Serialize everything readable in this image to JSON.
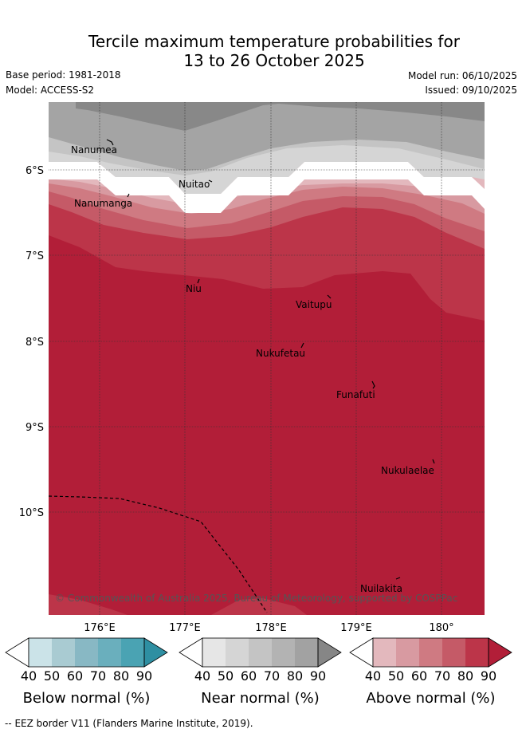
{
  "title": {
    "line1": "Tercile maximum temperature probabilities for",
    "line2": "13 to 26 October 2025"
  },
  "meta": {
    "base_period": "Base period: 1981-2018",
    "model": "Model: ACCESS-S2",
    "model_run": "Model run: 06/10/2025",
    "issued": "Issued: 09/10/2025"
  },
  "axes": {
    "lat_labels": [
      "6°S",
      "7°S",
      "8°S",
      "9°S",
      "10°S"
    ],
    "lon_labels": [
      "176°E",
      "177°E",
      "178°E",
      "179°E",
      "180°"
    ]
  },
  "places": [
    "Nanumea",
    "Nuitao",
    "Nanumanga",
    "Niu",
    "Vaitupu",
    "Nukufetau",
    "Funafuti",
    "Nukulaelae",
    "Nuilakita"
  ],
  "credit": "© Commonwealth of Australia 2025, Bureau of Meteorology, supported by COSPPac",
  "colorbars": [
    {
      "label": "Below normal (%)",
      "ticks": [
        "40",
        "50",
        "60",
        "70",
        "80",
        "90"
      ],
      "colors": [
        "#ffffff",
        "#cbe3e8",
        "#a9cbd2",
        "#88b8c4",
        "#6aafbd",
        "#4aa3b3",
        "#2e8fa2"
      ]
    },
    {
      "label": "Near normal (%)",
      "ticks": [
        "40",
        "50",
        "60",
        "70",
        "80",
        "90"
      ],
      "colors": [
        "#ffffff",
        "#e6e6e6",
        "#d5d5d5",
        "#c4c4c4",
        "#b3b3b3",
        "#a2a2a2",
        "#868686"
      ]
    },
    {
      "label": "Above normal (%)",
      "ticks": [
        "40",
        "50",
        "60",
        "70",
        "80",
        "90"
      ],
      "colors": [
        "#ffffff",
        "#e3b8bd",
        "#d89aa1",
        "#cf7a82",
        "#c55a67",
        "#bc3549",
        "#b21e38"
      ]
    }
  ],
  "footer": "-- EEZ border V11 (Flanders Marine Institute, 2019)."
}
